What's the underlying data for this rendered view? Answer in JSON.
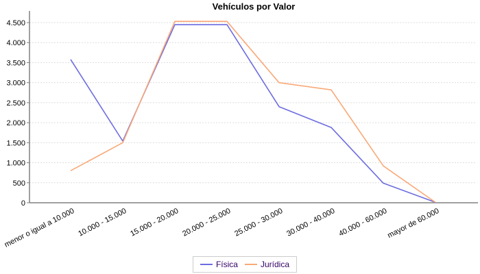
{
  "chart_data": {
    "type": "line",
    "title": "Vehículos por Valor",
    "categories": [
      "menor o igual a 10.000",
      "10.000 - 15.000",
      "15.000 - 20.000",
      "20.000 - 25.000",
      "25.000 - 30.000",
      "30.000 - 40.000",
      "40.000 - 60.000",
      "mayor de 60.000"
    ],
    "series": [
      {
        "name": "Física",
        "color": "#6C6CE0",
        "values": [
          3580,
          1540,
          4450,
          4450,
          2400,
          1880,
          490,
          10
        ]
      },
      {
        "name": "Jurídica",
        "color": "#F9A877",
        "values": [
          800,
          1500,
          4530,
          4530,
          3000,
          2820,
          920,
          10
        ]
      }
    ],
    "ylim": [
      0,
      4500
    ],
    "ytick_interval": 500,
    "ytick_labels": [
      "0",
      "500",
      "1.000",
      "1.500",
      "2.000",
      "2.500",
      "3.000",
      "3.500",
      "4.000",
      "4.500"
    ],
    "grid": "horizontal-dashed",
    "legend_position": "bottom-center",
    "x_label_rotation_deg": -27
  },
  "colors": {
    "background": "#FFFFFF",
    "grid": "#DCDCDC",
    "axis": "#808080",
    "tick_label": "#000000",
    "legend_text": "#330066",
    "legend_border": "#CCCCCC"
  }
}
